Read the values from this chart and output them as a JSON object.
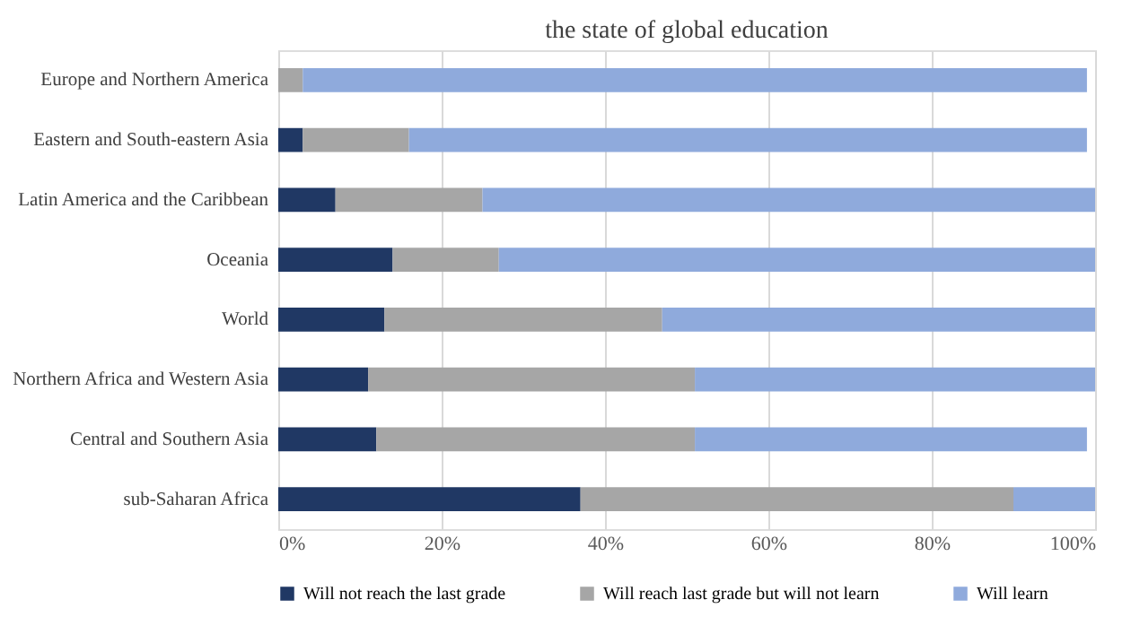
{
  "chart_data": {
    "type": "bar",
    "orientation": "horizontal",
    "stacked": true,
    "title": "the state of global education",
    "categories": [
      "Europe and Northern America",
      "Eastern and South-eastern Asia",
      "Latin America and the Caribbean",
      "Oceania",
      "World",
      "Northern Africa and Western Asia",
      "Central and Southern Asia",
      "sub-Saharan Africa"
    ],
    "series": [
      {
        "name": "Will not reach the last grade",
        "color": "#203864",
        "values": [
          0,
          3,
          7,
          14,
          13,
          11,
          12,
          37
        ]
      },
      {
        "name": "Will reach last grade but will not learn",
        "color": "#a6a6a6",
        "values": [
          3,
          13,
          18,
          13,
          34,
          40,
          39,
          53
        ]
      },
      {
        "name": "Will learn",
        "color": "#8faadc",
        "values": [
          96,
          83,
          75,
          73,
          53,
          49,
          48,
          10
        ]
      }
    ],
    "xlim": [
      0,
      100
    ],
    "xticks": [
      {
        "value": 0,
        "label": "0%"
      },
      {
        "value": 20,
        "label": "20%"
      },
      {
        "value": 40,
        "label": "40%"
      },
      {
        "value": 60,
        "label": "60%"
      },
      {
        "value": 80,
        "label": "80%"
      },
      {
        "value": 100,
        "label": "100%"
      }
    ],
    "grid": "x",
    "legend": "bottom"
  }
}
